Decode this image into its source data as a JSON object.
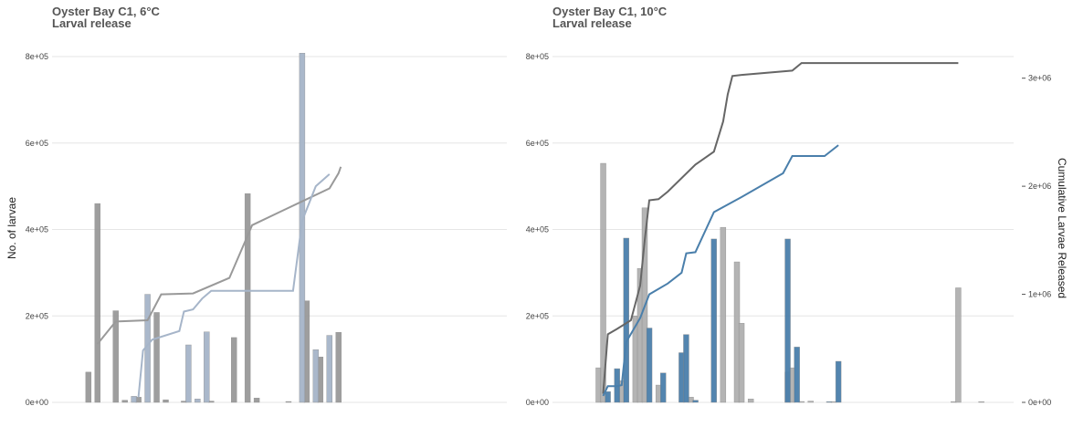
{
  "chart_data": [
    {
      "type": "bar",
      "title": "Oyster Bay C1, 6°C",
      "subtitle": "Larval release",
      "ylabel": "No. of larvae",
      "ylim": [
        0,
        800000
      ],
      "yticks": [
        0,
        200000,
        400000,
        600000,
        800000
      ],
      "ytick_labels": [
        "0e+00",
        "2e+05",
        "4e+05",
        "6e+05",
        "8e+05"
      ],
      "xlim": [
        0,
        100
      ],
      "series": [
        {
          "color": "#999999",
          "bars": [
            {
              "x": 8,
              "value": 70000
            },
            {
              "x": 10,
              "value": 460000
            },
            {
              "x": 14,
              "value": 212000
            },
            {
              "x": 16,
              "value": 5000
            },
            {
              "x": 19,
              "value": 12000
            },
            {
              "x": 23,
              "value": 208000
            },
            {
              "x": 25,
              "value": 6000
            },
            {
              "x": 29,
              "value": 3000
            },
            {
              "x": 35,
              "value": 3000
            },
            {
              "x": 40,
              "value": 150000
            },
            {
              "x": 43,
              "value": 483000
            },
            {
              "x": 45,
              "value": 10000
            },
            {
              "x": 52,
              "value": 2000
            },
            {
              "x": 56,
              "value": 235000
            },
            {
              "x": 59,
              "value": 105000
            },
            {
              "x": 63,
              "value": 162000
            }
          ],
          "cumulative": [
            {
              "x": 10,
              "y": 135000
            },
            {
              "x": 14,
              "y": 187000
            },
            {
              "x": 21,
              "y": 190000
            },
            {
              "x": 24,
              "y": 250000
            },
            {
              "x": 31,
              "y": 252000
            },
            {
              "x": 39,
              "y": 288000
            },
            {
              "x": 44,
              "y": 410000
            },
            {
              "x": 50,
              "y": 440000
            },
            {
              "x": 56,
              "y": 470000
            },
            {
              "x": 61,
              "y": 495000
            },
            {
              "x": 63,
              "y": 530000
            },
            {
              "x": 63.5,
              "y": 545000
            }
          ]
        },
        {
          "color": "#a6b5c9",
          "bars": [
            {
              "x": 18,
              "value": 14000
            },
            {
              "x": 21,
              "value": 250000
            },
            {
              "x": 30,
              "value": 133000
            },
            {
              "x": 32,
              "value": 8000
            },
            {
              "x": 34,
              "value": 163000
            },
            {
              "x": 55,
              "value": 808000
            },
            {
              "x": 58,
              "value": 122000
            },
            {
              "x": 61,
              "value": 155000
            }
          ],
          "cumulative": [
            {
              "x": 19,
              "y": 12000
            },
            {
              "x": 20,
              "y": 120000
            },
            {
              "x": 22,
              "y": 145000
            },
            {
              "x": 28,
              "y": 165000
            },
            {
              "x": 29,
              "y": 210000
            },
            {
              "x": 31,
              "y": 215000
            },
            {
              "x": 33,
              "y": 240000
            },
            {
              "x": 35,
              "y": 258000
            },
            {
              "x": 53,
              "y": 258000
            },
            {
              "x": 55,
              "y": 420000
            },
            {
              "x": 58,
              "y": 500000
            },
            {
              "x": 61,
              "y": 528000
            }
          ]
        }
      ]
    },
    {
      "type": "bar",
      "title": "Oyster Bay C1, 10°C",
      "subtitle": "Larval release",
      "ylim": [
        0,
        800000
      ],
      "yticks": [
        0,
        200000,
        400000,
        600000,
        800000
      ],
      "ytick_labels": [
        "0e+00",
        "2e+05",
        "4e+05",
        "6e+05",
        "8e+05"
      ],
      "y2label": "Cumulative Larvae Released",
      "y2lim": [
        0,
        3200000
      ],
      "y2ticks": [
        0,
        1000000,
        2000000,
        3000000
      ],
      "y2tick_labels": [
        "0e+00",
        "1e+06",
        "2e+06",
        "3e+06"
      ],
      "xlim": [
        0,
        100
      ],
      "series": [
        {
          "color": "#b0b0b0",
          "bars": [
            {
              "x": 10,
              "value": 80000
            },
            {
              "x": 11,
              "value": 553000
            },
            {
              "x": 15,
              "value": 50000
            },
            {
              "x": 18,
              "value": 200000
            },
            {
              "x": 19,
              "value": 310000
            },
            {
              "x": 20,
              "value": 450000
            },
            {
              "x": 23,
              "value": 40000
            },
            {
              "x": 30,
              "value": 12000
            },
            {
              "x": 37,
              "value": 405000
            },
            {
              "x": 40,
              "value": 325000
            },
            {
              "x": 41,
              "value": 183000
            },
            {
              "x": 43,
              "value": 8000
            },
            {
              "x": 51,
              "value": 70000
            },
            {
              "x": 52,
              "value": 80000
            },
            {
              "x": 54,
              "value": 2000
            },
            {
              "x": 56,
              "value": 3000
            },
            {
              "x": 61,
              "value": 1000
            },
            {
              "x": 87,
              "value": 1000
            },
            {
              "x": 88,
              "value": 265000
            },
            {
              "x": 93,
              "value": 1000
            }
          ],
          "cumulative": [
            {
              "x": 11,
              "y": 80000
            },
            {
              "x": 12,
              "y": 630000
            },
            {
              "x": 14,
              "y": 680000
            },
            {
              "x": 17,
              "y": 760000
            },
            {
              "x": 19,
              "y": 1080000
            },
            {
              "x": 20,
              "y": 1500000
            },
            {
              "x": 21,
              "y": 1870000
            },
            {
              "x": 23,
              "y": 1880000
            },
            {
              "x": 25,
              "y": 1950000
            },
            {
              "x": 31,
              "y": 2200000
            },
            {
              "x": 35,
              "y": 2320000
            },
            {
              "x": 37,
              "y": 2600000
            },
            {
              "x": 38,
              "y": 2850000
            },
            {
              "x": 39,
              "y": 3020000
            },
            {
              "x": 41,
              "y": 3030000
            },
            {
              "x": 52,
              "y": 3070000
            },
            {
              "x": 54,
              "y": 3140000
            },
            {
              "x": 70,
              "y": 3140000
            },
            {
              "x": 88,
              "y": 3140000
            }
          ]
        },
        {
          "color": "#4a7fab",
          "bars": [
            {
              "x": 12,
              "value": 25000
            },
            {
              "x": 14,
              "value": 78000
            },
            {
              "x": 16,
              "value": 380000
            },
            {
              "x": 21,
              "value": 172000
            },
            {
              "x": 24,
              "value": 68000
            },
            {
              "x": 28,
              "value": 115000
            },
            {
              "x": 29,
              "value": 157000
            },
            {
              "x": 31,
              "value": 5000
            },
            {
              "x": 35,
              "value": 378000
            },
            {
              "x": 51,
              "value": 378000
            },
            {
              "x": 53,
              "value": 128000
            },
            {
              "x": 60,
              "value": 1000
            },
            {
              "x": 62,
              "value": 95000
            }
          ],
          "cumulative": [
            {
              "x": 11,
              "y": 60000
            },
            {
              "x": 12,
              "y": 150000
            },
            {
              "x": 14,
              "y": 150000
            },
            {
              "x": 15,
              "y": 160000
            },
            {
              "x": 16,
              "y": 560000
            },
            {
              "x": 19,
              "y": 780000
            },
            {
              "x": 21,
              "y": 1000000
            },
            {
              "x": 25,
              "y": 1100000
            },
            {
              "x": 28,
              "y": 1200000
            },
            {
              "x": 29,
              "y": 1380000
            },
            {
              "x": 31,
              "y": 1390000
            },
            {
              "x": 35,
              "y": 1760000
            },
            {
              "x": 41,
              "y": 1900000
            },
            {
              "x": 50,
              "y": 2120000
            },
            {
              "x": 52,
              "y": 2280000
            },
            {
              "x": 59,
              "y": 2280000
            },
            {
              "x": 62,
              "y": 2380000
            }
          ]
        }
      ]
    }
  ]
}
